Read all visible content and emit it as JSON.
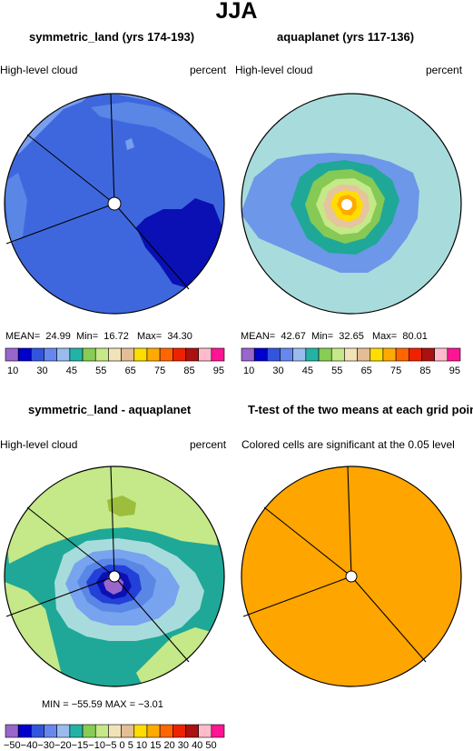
{
  "figure": {
    "title": "JJA"
  },
  "panels": [
    {
      "title": "symmetric_land (yrs 174-193)",
      "left_label": "High-level cloud",
      "right_label": "percent",
      "stats": {
        "mean_label": "MEAN=",
        "mean": "24.99",
        "min_label": "Min=",
        "min": "16.72",
        "max_label": "Max=",
        "max": "34.30"
      }
    },
    {
      "title": "aquaplanet (yrs 117-136)",
      "left_label": "High-level cloud",
      "right_label": "percent",
      "stats": {
        "mean_label": "MEAN=",
        "mean": "42.67",
        "min_label": "Min=",
        "min": "32.65",
        "max_label": "Max=",
        "max": "80.01"
      }
    },
    {
      "title": "symmetric_land - aquaplanet",
      "left_label": "High-level cloud",
      "right_label": "percent",
      "stats_text": "MIN = −55.59  MAX =  −3.01"
    },
    {
      "title": "T-test of the two means at each grid point",
      "subtitle": "Colored cells are significant at the 0.05 level"
    }
  ],
  "colorbar_abs": {
    "colors": [
      "#9966cc",
      "#0000cc",
      "#3355dd",
      "#6688ee",
      "#99bbee",
      "#22b3a6",
      "#88cc55",
      "#c5e888",
      "#f2e2b8",
      "#e3bd95",
      "#ffdd00",
      "#ffaa00",
      "#ff6600",
      "#ee2200",
      "#aa1111",
      "#ffbbcc",
      "#ff1493"
    ],
    "labels": [
      "10",
      "30",
      "45",
      "55",
      "65",
      "75",
      "85",
      "95"
    ]
  },
  "colorbar_diff": {
    "colors": [
      "#9966cc",
      "#0000cc",
      "#3355dd",
      "#6688ee",
      "#99bbee",
      "#22b3a6",
      "#88cc55",
      "#c5e888",
      "#f2e2b8",
      "#e3bd95",
      "#ffdd00",
      "#ffaa00",
      "#ff6600",
      "#ee2200",
      "#aa1111",
      "#ffbbcc",
      "#ff1493"
    ],
    "labels_text": "−50−40−30−20−15−10−5  0   5  10 15 20 30 40 50"
  }
}
